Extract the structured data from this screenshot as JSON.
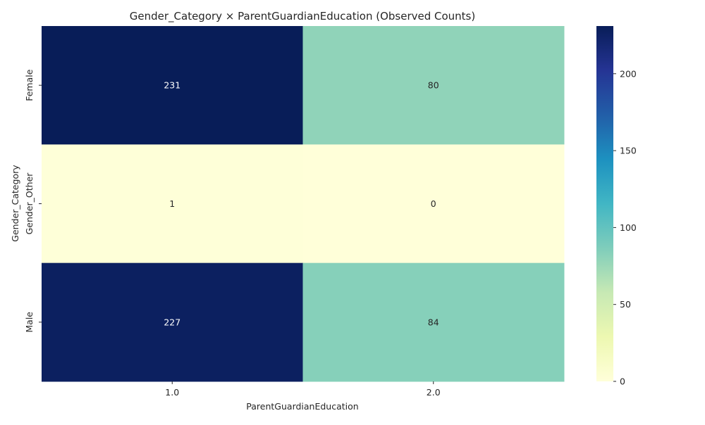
{
  "chart_data": {
    "type": "heatmap",
    "title": "Gender_Category × ParentGuardianEducation (Observed Counts)",
    "xlabel": "ParentGuardianEducation",
    "ylabel": "Gender_Category",
    "x_categories": [
      "1.0",
      "2.0"
    ],
    "y_categories": [
      "Female",
      "Gender_Other",
      "Male"
    ],
    "values": [
      [
        231,
        80
      ],
      [
        1,
        0
      ],
      [
        227,
        84
      ]
    ],
    "colormap": "YlGnBu",
    "colorbar": {
      "min": 0,
      "max": 231,
      "ticks": [
        0,
        50,
        100,
        150,
        200
      ]
    }
  }
}
